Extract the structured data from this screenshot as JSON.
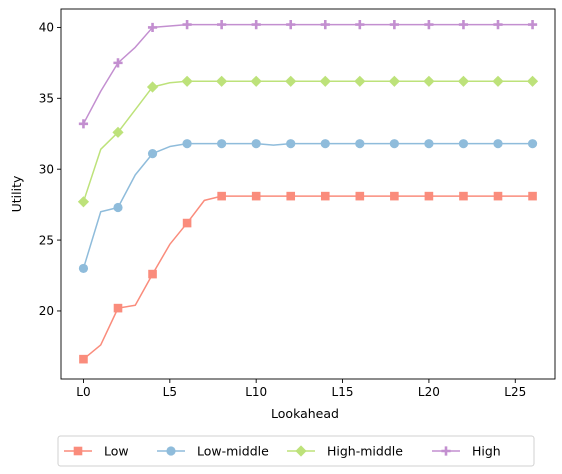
{
  "chart_data": {
    "type": "line",
    "xlabel": "Lookahead",
    "ylabel": "Utility",
    "x": [
      0,
      1,
      2,
      3,
      4,
      5,
      6,
      7,
      8,
      9,
      10,
      11,
      12,
      13,
      14,
      15,
      16,
      17,
      18,
      19,
      20,
      21,
      22,
      23,
      24,
      25,
      26
    ],
    "x_ticks": [
      {
        "value": 0,
        "label": "L0"
      },
      {
        "value": 5,
        "label": "L5"
      },
      {
        "value": 10,
        "label": "L10"
      },
      {
        "value": 15,
        "label": "L15"
      },
      {
        "value": 20,
        "label": "L20"
      },
      {
        "value": 25,
        "label": "L25"
      }
    ],
    "xlim": [
      -1.3,
      27.3
    ],
    "ylim": [
      15.2,
      41.3
    ],
    "y_ticks": [
      20,
      25,
      30,
      35,
      40
    ],
    "marker_every": 2,
    "grid": false,
    "legend_position": "bottom-center",
    "series": [
      {
        "name": "Low",
        "color": "#fa8c7c",
        "marker": "square",
        "values": [
          16.6,
          17.6,
          20.2,
          20.4,
          22.6,
          24.7,
          26.2,
          27.8,
          28.1,
          28.1,
          28.1,
          28.1,
          28.1,
          28.1,
          28.1,
          28.1,
          28.1,
          28.1,
          28.1,
          28.1,
          28.1,
          28.1,
          28.1,
          28.1,
          28.1,
          28.1,
          28.1
        ]
      },
      {
        "name": "Low-middle",
        "color": "#8fbcdb",
        "marker": "circle",
        "values": [
          23.0,
          27.0,
          27.3,
          29.6,
          31.1,
          31.6,
          31.8,
          31.8,
          31.8,
          31.8,
          31.8,
          31.7,
          31.8,
          31.8,
          31.8,
          31.8,
          31.8,
          31.8,
          31.8,
          31.8,
          31.8,
          31.8,
          31.8,
          31.8,
          31.8,
          31.8,
          31.8
        ]
      },
      {
        "name": "High-middle",
        "color": "#bde27a",
        "marker": "diamond",
        "values": [
          27.7,
          31.4,
          32.6,
          34.2,
          35.8,
          36.1,
          36.2,
          36.2,
          36.2,
          36.2,
          36.2,
          36.2,
          36.2,
          36.2,
          36.2,
          36.2,
          36.2,
          36.2,
          36.2,
          36.2,
          36.2,
          36.2,
          36.2,
          36.2,
          36.2,
          36.2,
          36.2
        ]
      },
      {
        "name": "High",
        "color": "#c38fd0",
        "marker": "plus",
        "values": [
          33.2,
          35.5,
          37.5,
          38.6,
          40.0,
          40.1,
          40.2,
          40.2,
          40.2,
          40.2,
          40.2,
          40.2,
          40.2,
          40.2,
          40.2,
          40.2,
          40.2,
          40.2,
          40.2,
          40.2,
          40.2,
          40.2,
          40.2,
          40.2,
          40.2,
          40.2,
          40.2
        ]
      }
    ]
  }
}
